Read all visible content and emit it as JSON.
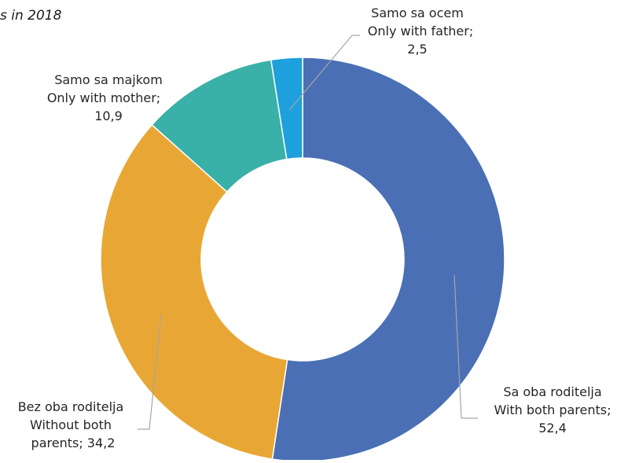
{
  "chart_data": {
    "type": "pie",
    "title": "",
    "subtitle": "s in 2018",
    "donut": true,
    "colors": [
      "#4A6FB5",
      "#E8A735",
      "#39B0A8",
      "#1EA0DC"
    ],
    "slices": [
      {
        "label_lines": [
          "Sa oba roditelja",
          "With both parents;",
          "52,4"
        ],
        "value": 52.4
      },
      {
        "label_lines": [
          "Bez oba roditelja",
          "Without both",
          "parents; 34,2"
        ],
        "value": 34.2
      },
      {
        "label_lines": [
          "Samo sa majkom",
          "Only with mother;",
          "10,9"
        ],
        "value": 10.9
      },
      {
        "label_lines": [
          "Samo sa ocem",
          "Only with father;",
          "2,5"
        ],
        "value": 2.5
      }
    ]
  }
}
